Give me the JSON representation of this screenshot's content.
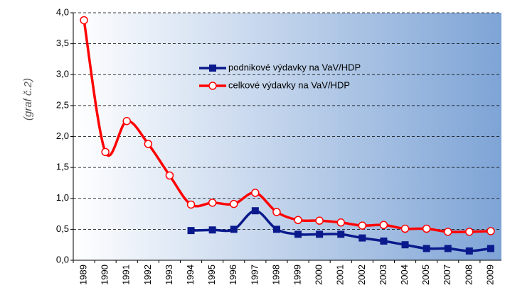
{
  "chart_data": {
    "type": "line",
    "annotation": "(graf č.2)",
    "categories": [
      "1989",
      "1990",
      "1991",
      "1992",
      "1993",
      "1994",
      "1995",
      "1996",
      "1997",
      "1998",
      "1999",
      "2000",
      "2001",
      "2002",
      "2003",
      "2004",
      "2005",
      "2007",
      "2008",
      "2009"
    ],
    "series": [
      {
        "name": "podnikové výdavky na VaV/HDP",
        "color": "#0a1a8c",
        "marker": "square",
        "values": [
          null,
          null,
          null,
          null,
          null,
          0.48,
          0.49,
          0.5,
          0.8,
          0.5,
          0.42,
          0.42,
          0.42,
          0.36,
          0.31,
          0.25,
          0.19,
          0.19,
          0.15,
          0.19
        ]
      },
      {
        "name": "celkové výdavky na VaV/HDP",
        "color": "#ff0000",
        "marker": "circle",
        "values": [
          3.88,
          1.75,
          2.25,
          1.88,
          1.37,
          0.9,
          0.93,
          0.91,
          1.09,
          0.78,
          0.65,
          0.64,
          0.61,
          0.56,
          0.57,
          0.51,
          0.51,
          0.46,
          0.46,
          0.47
        ]
      }
    ],
    "ylim": [
      0,
      4
    ],
    "yticks": [
      {
        "value": 0,
        "label": "0,0"
      },
      {
        "value": 0.5,
        "label": "0,5"
      },
      {
        "value": 1,
        "label": "1,0"
      },
      {
        "value": 1.5,
        "label": "1,5"
      },
      {
        "value": 2,
        "label": "2,0"
      },
      {
        "value": 2.5,
        "label": "2,5"
      },
      {
        "value": 3,
        "label": "3,0"
      },
      {
        "value": 3.5,
        "label": "3,5"
      },
      {
        "value": 4,
        "label": "4,0"
      }
    ],
    "grid": true
  }
}
